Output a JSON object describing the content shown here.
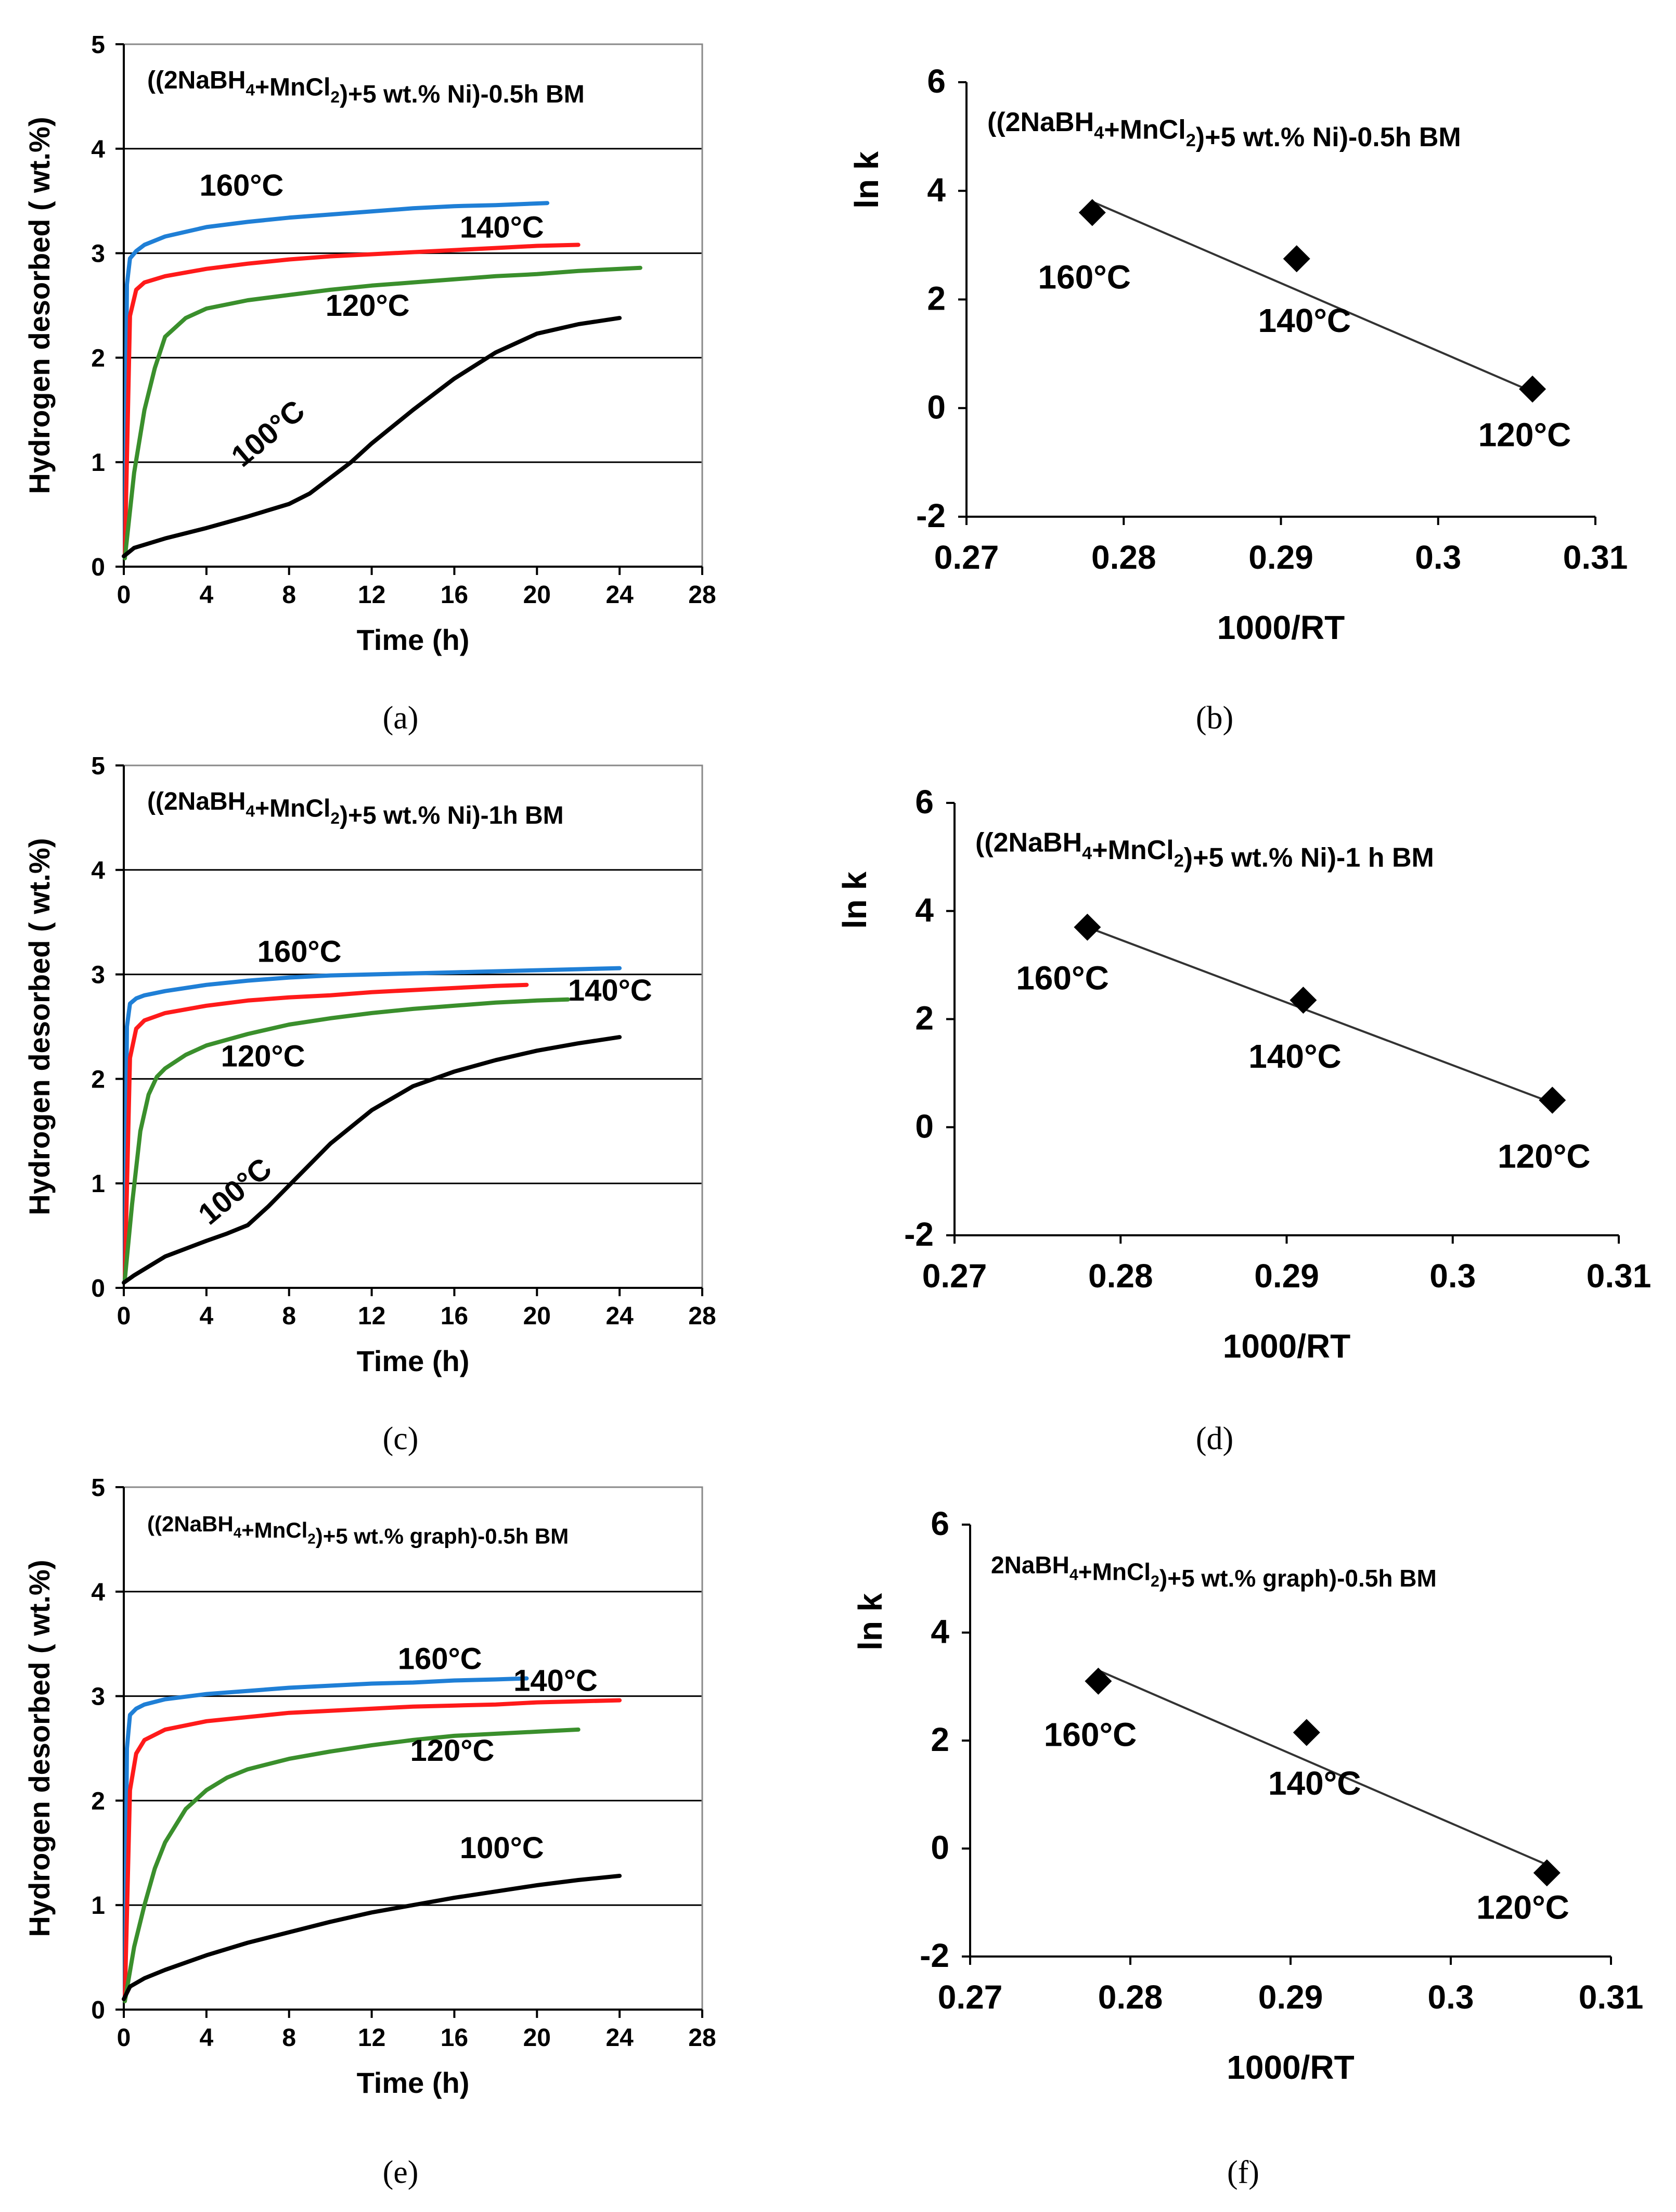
{
  "colors": {
    "c160": "#1f7fd6",
    "c140": "#ff1a1a",
    "c120": "#3a8f2c",
    "c100": "#000000"
  },
  "chart_data": [
    {
      "panel": "(a)",
      "type": "line",
      "title": "((2NaBH4+MnCl2)+5 wt.% Ni)-0.5h BM",
      "xlabel": "Time  (h)",
      "ylabel": "Hydrogen desorbed ( wt.%)",
      "xlim": [
        0,
        28
      ],
      "ylim": [
        0,
        5
      ],
      "xticks": [
        "0",
        "4",
        "8",
        "12",
        "16",
        "20",
        "24",
        "28"
      ],
      "yticks": [
        "0",
        "1",
        "2",
        "3",
        "4",
        "5"
      ],
      "grid": "horizontal",
      "series": [
        {
          "name": "160°C",
          "color": "c160",
          "label": "160°C",
          "points": [
            [
              0.05,
              0.1
            ],
            [
              0.15,
              2.7
            ],
            [
              0.3,
              2.95
            ],
            [
              0.6,
              3.02
            ],
            [
              1,
              3.08
            ],
            [
              2,
              3.16
            ],
            [
              4,
              3.25
            ],
            [
              6,
              3.3
            ],
            [
              8,
              3.34
            ],
            [
              10,
              3.37
            ],
            [
              12,
              3.4
            ],
            [
              14,
              3.43
            ],
            [
              16,
              3.45
            ],
            [
              18,
              3.46
            ],
            [
              20.5,
              3.48
            ]
          ]
        },
        {
          "name": "140°C",
          "color": "c140",
          "label": "140°C",
          "points": [
            [
              0.05,
              0.1
            ],
            [
              0.3,
              2.4
            ],
            [
              0.6,
              2.65
            ],
            [
              1,
              2.72
            ],
            [
              2,
              2.78
            ],
            [
              4,
              2.85
            ],
            [
              6,
              2.9
            ],
            [
              8,
              2.94
            ],
            [
              10,
              2.97
            ],
            [
              12,
              2.99
            ],
            [
              14,
              3.01
            ],
            [
              16,
              3.03
            ],
            [
              18,
              3.05
            ],
            [
              20,
              3.07
            ],
            [
              22,
              3.08
            ]
          ]
        },
        {
          "name": "120°C",
          "color": "c120",
          "label": "120°C",
          "points": [
            [
              0.05,
              0.08
            ],
            [
              0.5,
              0.9
            ],
            [
              1,
              1.5
            ],
            [
              1.5,
              1.9
            ],
            [
              2,
              2.2
            ],
            [
              3,
              2.38
            ],
            [
              4,
              2.47
            ],
            [
              6,
              2.55
            ],
            [
              8,
              2.6
            ],
            [
              10,
              2.65
            ],
            [
              12,
              2.69
            ],
            [
              14,
              2.72
            ],
            [
              16,
              2.75
            ],
            [
              18,
              2.78
            ],
            [
              20,
              2.8
            ],
            [
              22,
              2.83
            ],
            [
              25,
              2.86
            ]
          ]
        },
        {
          "name": "100°C",
          "color": "c100",
          "label": "100°C",
          "points": [
            [
              0,
              0.1
            ],
            [
              0.5,
              0.18
            ],
            [
              2,
              0.27
            ],
            [
              4,
              0.37
            ],
            [
              6,
              0.48
            ],
            [
              8,
              0.6
            ],
            [
              9,
              0.7
            ],
            [
              10,
              0.85
            ],
            [
              11,
              1.0
            ],
            [
              12,
              1.18
            ],
            [
              14,
              1.5
            ],
            [
              16,
              1.8
            ],
            [
              18,
              2.05
            ],
            [
              20,
              2.23
            ],
            [
              22,
              2.32
            ],
            [
              24,
              2.38
            ]
          ]
        }
      ]
    },
    {
      "panel": "(b)",
      "type": "scatter",
      "title": "((2NaBH4+MnCl2)+5 wt.% Ni)-0.5h BM",
      "xlabel": "1000/RT",
      "ylabel": "ln k",
      "xlim": [
        0.27,
        0.31
      ],
      "ylim": [
        -2,
        6
      ],
      "xticks": [
        "0.27",
        "0.28",
        "0.29",
        "0.3",
        "0.31"
      ],
      "yticks": [
        "-2",
        "0",
        "2",
        "4",
        "6"
      ],
      "points": [
        {
          "x": 0.278,
          "y": 3.6,
          "label": "160°C"
        },
        {
          "x": 0.291,
          "y": 2.75,
          "label": "140°C"
        },
        {
          "x": 0.306,
          "y": 0.35,
          "label": "120°C"
        }
      ],
      "fit": [
        [
          0.278,
          3.8
        ],
        [
          0.306,
          0.3
        ]
      ]
    },
    {
      "panel": "(c)",
      "type": "line",
      "title": "((2NaBH4+MnCl2)+5 wt.% Ni)-1h BM",
      "xlabel": "Time  (h)",
      "ylabel": "Hydrogen desorbed ( wt.%)",
      "xlim": [
        0,
        28
      ],
      "ylim": [
        0,
        5
      ],
      "xticks": [
        "0",
        "4",
        "8",
        "12",
        "16",
        "20",
        "24",
        "28"
      ],
      "yticks": [
        "0",
        "1",
        "2",
        "3",
        "4",
        "5"
      ],
      "grid": "horizontal",
      "series": [
        {
          "name": "160°C",
          "color": "c160",
          "label": "160°C",
          "points": [
            [
              0.05,
              0.1
            ],
            [
              0.15,
              2.5
            ],
            [
              0.3,
              2.72
            ],
            [
              0.6,
              2.77
            ],
            [
              1,
              2.8
            ],
            [
              2,
              2.84
            ],
            [
              4,
              2.9
            ],
            [
              6,
              2.94
            ],
            [
              8,
              2.97
            ],
            [
              10,
              2.99
            ],
            [
              12,
              3.0
            ],
            [
              14,
              3.01
            ],
            [
              16,
              3.02
            ],
            [
              18,
              3.03
            ],
            [
              20,
              3.04
            ],
            [
              22,
              3.05
            ],
            [
              24,
              3.06
            ]
          ]
        },
        {
          "name": "140°C",
          "color": "c140",
          "label": "",
          "points": [
            [
              0.05,
              0.1
            ],
            [
              0.3,
              2.2
            ],
            [
              0.6,
              2.48
            ],
            [
              1,
              2.56
            ],
            [
              2,
              2.63
            ],
            [
              4,
              2.7
            ],
            [
              6,
              2.75
            ],
            [
              8,
              2.78
            ],
            [
              10,
              2.8
            ],
            [
              12,
              2.83
            ],
            [
              14,
              2.85
            ],
            [
              16,
              2.87
            ],
            [
              18,
              2.89
            ],
            [
              19.5,
              2.9
            ]
          ]
        },
        {
          "name": "120°C",
          "color": "c120",
          "label": "",
          "points": [
            [
              0.05,
              0.08
            ],
            [
              0.4,
              0.8
            ],
            [
              0.8,
              1.5
            ],
            [
              1.2,
              1.85
            ],
            [
              1.6,
              2.02
            ],
            [
              2,
              2.1
            ],
            [
              3,
              2.23
            ],
            [
              4,
              2.32
            ],
            [
              6,
              2.43
            ],
            [
              8,
              2.52
            ],
            [
              10,
              2.58
            ],
            [
              12,
              2.63
            ],
            [
              14,
              2.67
            ],
            [
              16,
              2.7
            ],
            [
              18,
              2.73
            ],
            [
              20,
              2.75
            ],
            [
              21.5,
              2.76
            ]
          ]
        },
        {
          "name": "100°C",
          "color": "c100",
          "label": "100°C",
          "points": [
            [
              0,
              0.05
            ],
            [
              0.5,
              0.12
            ],
            [
              2,
              0.3
            ],
            [
              4,
              0.45
            ],
            [
              5,
              0.52
            ],
            [
              6,
              0.6
            ],
            [
              7,
              0.78
            ],
            [
              8,
              0.98
            ],
            [
              9,
              1.18
            ],
            [
              10,
              1.38
            ],
            [
              12,
              1.7
            ],
            [
              14,
              1.93
            ],
            [
              16,
              2.07
            ],
            [
              18,
              2.18
            ],
            [
              20,
              2.27
            ],
            [
              22,
              2.34
            ],
            [
              24,
              2.4
            ]
          ]
        }
      ],
      "extra_labels": [
        "140°C",
        "120°C"
      ]
    },
    {
      "panel": "(d)",
      "type": "scatter",
      "title": "((2NaBH4+MnCl2)+5 wt.% Ni)-1 h BM",
      "xlabel": "1000/RT",
      "ylabel": "ln k",
      "xlim": [
        0.27,
        0.31
      ],
      "ylim": [
        -2,
        6
      ],
      "xticks": [
        "0.27",
        "0.28",
        "0.29",
        "0.3",
        "0.31"
      ],
      "yticks": [
        "-2",
        "0",
        "2",
        "4",
        "6"
      ],
      "points": [
        {
          "x": 0.278,
          "y": 3.7,
          "label": "160°C"
        },
        {
          "x": 0.291,
          "y": 2.35,
          "label": "140°C"
        },
        {
          "x": 0.306,
          "y": 0.5,
          "label": "120°C"
        }
      ],
      "fit": [
        [
          0.278,
          3.7
        ],
        [
          0.306,
          0.45
        ]
      ]
    },
    {
      "panel": "(e)",
      "type": "line",
      "title": "((2NaBH4+MnCl2)+5  wt.% graph)-0.5h  BM",
      "xlabel": "Time  (h)",
      "ylabel": "Hydrogen desorbed ( wt.%)",
      "xlim": [
        0,
        28
      ],
      "ylim": [
        0,
        5
      ],
      "xticks": [
        "0",
        "4",
        "8",
        "12",
        "16",
        "20",
        "24",
        "28"
      ],
      "yticks": [
        "0",
        "1",
        "2",
        "3",
        "4",
        "5"
      ],
      "grid": "horizontal",
      "series": [
        {
          "name": "160°C",
          "color": "c160",
          "label": "160°C",
          "points": [
            [
              0.05,
              0.1
            ],
            [
              0.15,
              2.5
            ],
            [
              0.3,
              2.82
            ],
            [
              0.6,
              2.88
            ],
            [
              1,
              2.92
            ],
            [
              2,
              2.97
            ],
            [
              4,
              3.02
            ],
            [
              6,
              3.05
            ],
            [
              8,
              3.08
            ],
            [
              10,
              3.1
            ],
            [
              12,
              3.12
            ],
            [
              14,
              3.13
            ],
            [
              16,
              3.15
            ],
            [
              18,
              3.16
            ],
            [
              19.5,
              3.17
            ]
          ]
        },
        {
          "name": "140°C",
          "color": "c140",
          "label": "140°C",
          "points": [
            [
              0.05,
              0.1
            ],
            [
              0.3,
              2.1
            ],
            [
              0.6,
              2.45
            ],
            [
              1,
              2.58
            ],
            [
              2,
              2.68
            ],
            [
              4,
              2.76
            ],
            [
              6,
              2.8
            ],
            [
              8,
              2.84
            ],
            [
              10,
              2.86
            ],
            [
              12,
              2.88
            ],
            [
              14,
              2.9
            ],
            [
              16,
              2.91
            ],
            [
              18,
              2.92
            ],
            [
              20,
              2.94
            ],
            [
              22,
              2.95
            ],
            [
              24,
              2.96
            ]
          ]
        },
        {
          "name": "120°C",
          "color": "c120",
          "label": "120°C",
          "points": [
            [
              0.05,
              0.08
            ],
            [
              0.5,
              0.6
            ],
            [
              1,
              1.0
            ],
            [
              1.5,
              1.35
            ],
            [
              2,
              1.6
            ],
            [
              3,
              1.92
            ],
            [
              4,
              2.1
            ],
            [
              5,
              2.22
            ],
            [
              6,
              2.3
            ],
            [
              8,
              2.4
            ],
            [
              10,
              2.47
            ],
            [
              12,
              2.53
            ],
            [
              14,
              2.58
            ],
            [
              16,
              2.62
            ],
            [
              18,
              2.64
            ],
            [
              20,
              2.66
            ],
            [
              22,
              2.68
            ]
          ]
        },
        {
          "name": "100°C",
          "color": "c100",
          "label": "100°C",
          "points": [
            [
              0,
              0.1
            ],
            [
              0.3,
              0.22
            ],
            [
              1,
              0.3
            ],
            [
              2,
              0.38
            ],
            [
              4,
              0.52
            ],
            [
              6,
              0.64
            ],
            [
              8,
              0.74
            ],
            [
              10,
              0.84
            ],
            [
              12,
              0.93
            ],
            [
              14,
              1.0
            ],
            [
              16,
              1.07
            ],
            [
              18,
              1.13
            ],
            [
              20,
              1.19
            ],
            [
              22,
              1.24
            ],
            [
              24,
              1.28
            ]
          ]
        }
      ]
    },
    {
      "panel": "(f)",
      "type": "scatter",
      "title": "2NaBH4+MnCl2)+5  wt.% graph)-0.5h  BM",
      "xlabel": "1000/RT",
      "ylabel": "ln k",
      "xlim": [
        0.27,
        0.31
      ],
      "ylim": [
        -2,
        6
      ],
      "xticks": [
        "0.27",
        "0.28",
        "0.29",
        "0.3",
        "0.31"
      ],
      "yticks": [
        "-2",
        "0",
        "2",
        "4",
        "6"
      ],
      "points": [
        {
          "x": 0.278,
          "y": 3.1,
          "label": "160°C"
        },
        {
          "x": 0.291,
          "y": 2.15,
          "label": "140°C"
        },
        {
          "x": 0.306,
          "y": -0.45,
          "label": "120°C"
        }
      ],
      "fit": [
        [
          0.278,
          3.3
        ],
        [
          0.306,
          -0.3
        ]
      ]
    }
  ]
}
